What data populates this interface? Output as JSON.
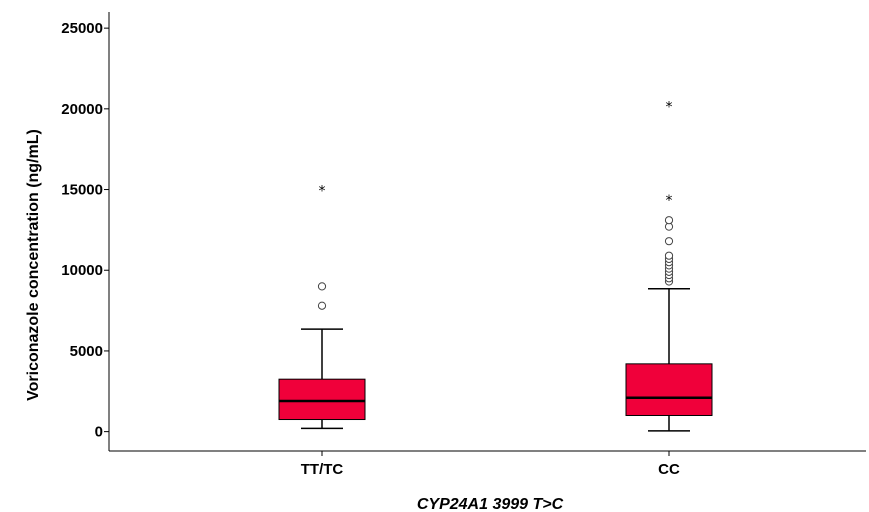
{
  "chart_data": {
    "type": "box",
    "xlabel": "CYP24A1 3999 T>C",
    "ylabel": "Voriconazole concentration (ng/mL)",
    "ylim": [
      -1200,
      26000
    ],
    "yticks": [
      0,
      5000,
      10000,
      15000,
      20000,
      25000
    ],
    "grid": false,
    "legend": "none",
    "box_color": "#f0003a",
    "categories": [
      "TT/TC",
      "CC"
    ],
    "boxes": [
      {
        "category": "TT/TC",
        "whisker_low": 200,
        "q1": 750,
        "median": 1900,
        "q3": 3250,
        "whisker_high": 6350,
        "outliers": [
          7800,
          9000
        ],
        "extremes": [
          15000
        ]
      },
      {
        "category": "CC",
        "whisker_low": 50,
        "q1": 1000,
        "median": 2100,
        "q3": 4200,
        "whisker_high": 8850,
        "outliers": [
          9300,
          9500,
          9700,
          9900,
          10100,
          10300,
          10500,
          10700,
          10900,
          11800,
          12700,
          13100
        ],
        "extremes": [
          14400,
          20200
        ]
      }
    ]
  }
}
